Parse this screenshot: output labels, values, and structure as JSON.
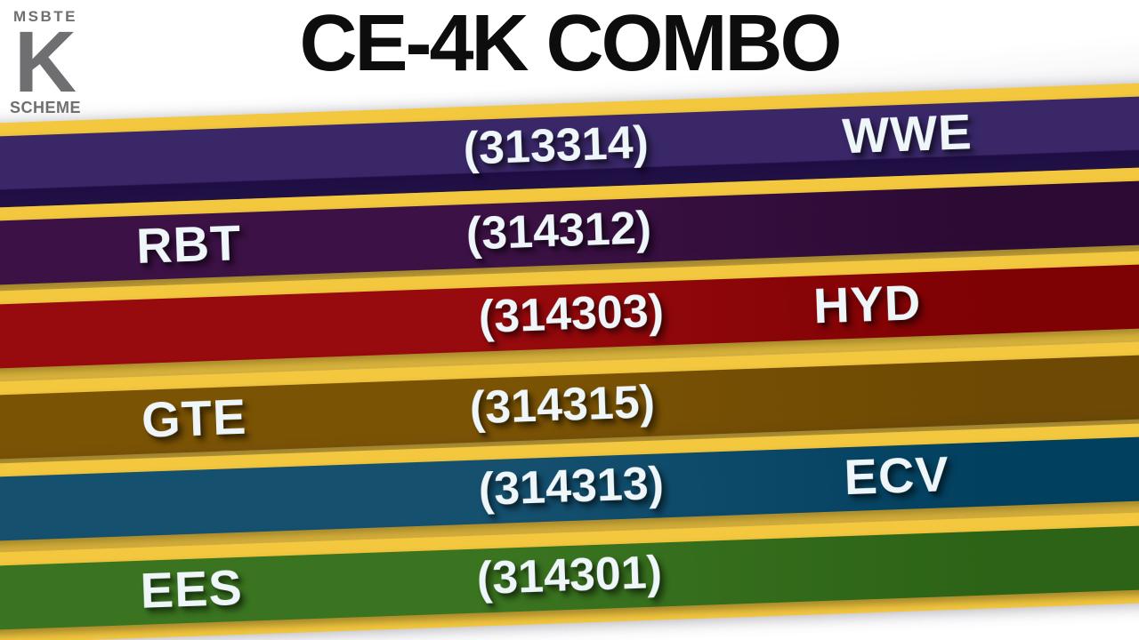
{
  "logo": {
    "top": "MSBTE",
    "letter": "K",
    "bottom": "SCHEME"
  },
  "title": "CE-4K COMBO",
  "theme": {
    "gold": "#f3c73e",
    "background": "#ffffff",
    "title_color": "#0d0d0d",
    "logo_color": "#6f6f72",
    "band_text_color": "#eef6f9"
  },
  "bands": [
    {
      "label": "WWE",
      "code": "(313314)",
      "label_side": "right",
      "color": "#392768",
      "fold_color": "#1f0e44",
      "fold": "bottom"
    },
    {
      "label": "RBT",
      "code": "(314312)",
      "label_side": "left",
      "color": "#3c1145",
      "fold_color": "#2b0a33",
      "fold": "right"
    },
    {
      "label": "HYD",
      "code": "(314303)",
      "label_side": "right",
      "color": "#970a0d",
      "fold_color": "#7e0103",
      "fold": "right"
    },
    {
      "label": "GTE",
      "code": "(314315)",
      "label_side": "left",
      "color": "#7b5304",
      "fold_color": "#6d4903",
      "fold": "right"
    },
    {
      "label": "ECV",
      "code": "(314313)",
      "label_side": "right",
      "color": "#15506f",
      "fold_color": "#02405f",
      "fold": "right"
    },
    {
      "label": "EES",
      "code": "(314301)",
      "label_side": "left",
      "color": "#3a7420",
      "fold_color": "#2c6316",
      "fold": "right"
    }
  ]
}
